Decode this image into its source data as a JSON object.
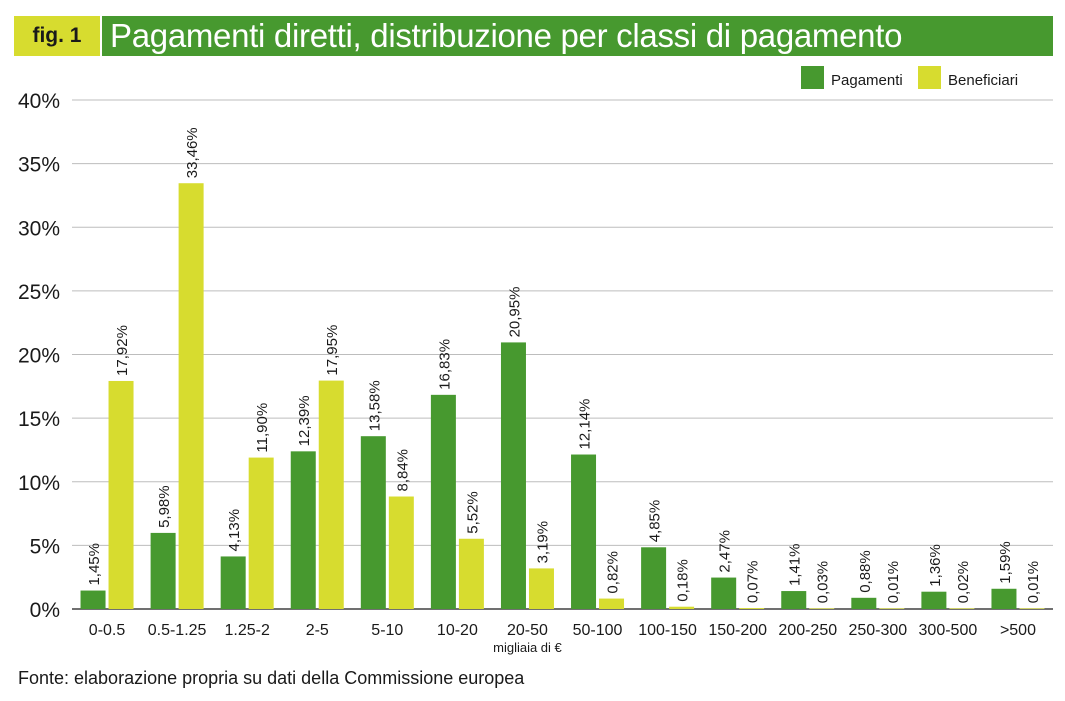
{
  "header": {
    "fig_label": "fig. 1",
    "title": "Pagamenti diretti, distribuzione per classi di pagamento"
  },
  "colors": {
    "pagamenti": "#47992f",
    "beneficiari": "#d7dc2f",
    "grid": "#bdbdbd",
    "text": "#1a1a1a"
  },
  "chart_data": {
    "type": "bar",
    "title": "Pagamenti diretti, distribuzione per classi di pagamento",
    "xlabel": "migliaia di €",
    "ylabel": "",
    "ylim": [
      0,
      40
    ],
    "yticks": [
      0,
      5,
      10,
      15,
      20,
      25,
      30,
      35,
      40
    ],
    "ytick_labels": [
      "0%",
      "5%",
      "10%",
      "15%",
      "20%",
      "25%",
      "30%",
      "35%",
      "40%"
    ],
    "grid": true,
    "legend_position": "top-right",
    "categories": [
      "0-0.5",
      "0.5-1.25",
      "1.25-2",
      "2-5",
      "5-10",
      "10-20",
      "20-50",
      "50-100",
      "100-150",
      "150-200",
      "200-250",
      "250-300",
      "300-500",
      ">500"
    ],
    "series": [
      {
        "name": "Pagamenti",
        "values": [
          1.45,
          5.98,
          4.13,
          12.39,
          13.58,
          16.83,
          20.95,
          12.14,
          4.85,
          2.47,
          1.41,
          0.88,
          1.36,
          1.59
        ],
        "labels": [
          "1,45%",
          "5,98%",
          "4,13%",
          "12,39%",
          "13,58%",
          "16,83%",
          "20,95%",
          "12,14%",
          "4,85%",
          "2,47%",
          "1,41%",
          "0,88%",
          "1,36%",
          "1,59%"
        ]
      },
      {
        "name": "Beneficiari",
        "values": [
          17.92,
          33.46,
          11.9,
          17.95,
          8.84,
          5.52,
          3.19,
          0.82,
          0.18,
          0.07,
          0.03,
          0.01,
          0.02,
          0.01
        ],
        "labels": [
          "17,92%",
          "33,46%",
          "11,90%",
          "17,95%",
          "8,84%",
          "5,52%",
          "3,19%",
          "0,82%",
          "0,18%",
          "0,07%",
          "0,03%",
          "0,01%",
          "0,02%",
          "0,01%"
        ]
      }
    ]
  },
  "source": "Fonte: elaborazione propria su dati della Commissione europea"
}
